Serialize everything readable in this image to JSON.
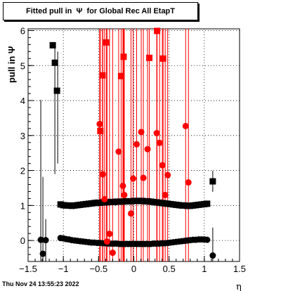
{
  "title": "Fitted pull in  Ψ  for Global Rec All EtapT",
  "timestamp": "Thu Nov 24 13:55:23 2022",
  "chart_data": {
    "type": "scatter",
    "title": "Fitted pull in  Ψ  for Global Rec All EtapT",
    "xlabel": "η",
    "ylabel": "pull in  Ψ",
    "xlim": [
      -1.5,
      1.5
    ],
    "ylim": [
      -0.6,
      6.05
    ],
    "x_ticks": [
      -1.5,
      -1,
      -0.5,
      0,
      0.5,
      1,
      1.5
    ],
    "x_tick_labels": [
      "−1.5",
      "−1",
      "−0.5",
      "0",
      "0.5",
      "1",
      "1.5"
    ],
    "y_ticks": [
      0,
      1,
      2,
      3,
      4,
      5,
      6
    ],
    "y_tick_labels": [
      "0",
      "1",
      "2",
      "3",
      "4",
      "5",
      "6"
    ],
    "grid": true,
    "series": [
      {
        "color": "#000000",
        "marker": "square",
        "points": [
          {
            "x": -1.15,
            "y": 5.58,
            "err": 0
          },
          {
            "x": -1.12,
            "y": 5.08,
            "err": 0
          },
          {
            "x": -1.09,
            "y": 4.28,
            "err": 0
          },
          {
            "x": -1.04,
            "y": 1.03,
            "err": 0
          },
          {
            "x": -1.0,
            "y": 1.01,
            "err": 0
          },
          {
            "x": -0.96,
            "y": 1.0,
            "err": 0
          },
          {
            "x": -0.92,
            "y": 1.0,
            "err": 0
          },
          {
            "x": -0.88,
            "y": 0.99,
            "err": 0
          },
          {
            "x": -0.84,
            "y": 1.0,
            "err": 0
          },
          {
            "x": -0.8,
            "y": 1.01,
            "err": 0
          },
          {
            "x": -0.76,
            "y": 1.02,
            "err": 0
          },
          {
            "x": -0.72,
            "y": 1.03,
            "err": 0
          },
          {
            "x": -0.68,
            "y": 1.04,
            "err": 0
          },
          {
            "x": -0.64,
            "y": 1.05,
            "err": 0
          },
          {
            "x": -0.6,
            "y": 1.06,
            "err": 0
          },
          {
            "x": -0.56,
            "y": 1.07,
            "err": 0
          },
          {
            "x": -0.52,
            "y": 1.08,
            "err": 0
          },
          {
            "x": -0.48,
            "y": 1.08,
            "err": 0
          },
          {
            "x": -0.44,
            "y": 1.09,
            "err": 0
          },
          {
            "x": -0.4,
            "y": 1.09,
            "err": 0
          },
          {
            "x": -0.36,
            "y": 1.1,
            "err": 0
          },
          {
            "x": -0.32,
            "y": 1.1,
            "err": 0
          },
          {
            "x": -0.28,
            "y": 1.1,
            "err": 0
          },
          {
            "x": -0.24,
            "y": 1.11,
            "err": 0
          },
          {
            "x": -0.2,
            "y": 1.11,
            "err": 0
          },
          {
            "x": -0.16,
            "y": 1.11,
            "err": 0
          },
          {
            "x": -0.12,
            "y": 1.12,
            "err": 0
          },
          {
            "x": -0.08,
            "y": 1.12,
            "err": 0
          },
          {
            "x": -0.04,
            "y": 1.12,
            "err": 0
          },
          {
            "x": 0.0,
            "y": 1.13,
            "err": 0
          },
          {
            "x": 0.04,
            "y": 1.13,
            "err": 0
          },
          {
            "x": 0.08,
            "y": 1.13,
            "err": 0
          },
          {
            "x": 0.12,
            "y": 1.13,
            "err": 0
          },
          {
            "x": 0.16,
            "y": 1.12,
            "err": 0
          },
          {
            "x": 0.2,
            "y": 1.12,
            "err": 0
          },
          {
            "x": 0.24,
            "y": 1.11,
            "err": 0
          },
          {
            "x": 0.28,
            "y": 1.1,
            "err": 0
          },
          {
            "x": 0.32,
            "y": 1.09,
            "err": 0
          },
          {
            "x": 0.36,
            "y": 1.08,
            "err": 0
          },
          {
            "x": 0.4,
            "y": 1.07,
            "err": 0
          },
          {
            "x": 0.44,
            "y": 1.06,
            "err": 0
          },
          {
            "x": 0.48,
            "y": 1.05,
            "err": 0
          },
          {
            "x": 0.52,
            "y": 1.04,
            "err": 0
          },
          {
            "x": 0.56,
            "y": 1.03,
            "err": 0
          },
          {
            "x": 0.6,
            "y": 1.02,
            "err": 0
          },
          {
            "x": 0.64,
            "y": 1.01,
            "err": 0
          },
          {
            "x": 0.68,
            "y": 1.0,
            "err": 0
          },
          {
            "x": 0.72,
            "y": 1.0,
            "err": 0
          },
          {
            "x": 0.76,
            "y": 0.99,
            "err": 0
          },
          {
            "x": 0.8,
            "y": 0.99,
            "err": 0
          },
          {
            "x": 0.84,
            "y": 1.0,
            "err": 0
          },
          {
            "x": 0.88,
            "y": 1.01,
            "err": 0
          },
          {
            "x": 0.92,
            "y": 1.02,
            "err": 0
          },
          {
            "x": 0.96,
            "y": 1.03,
            "err": 0
          },
          {
            "x": 1.0,
            "y": 1.04,
            "err": 0
          },
          {
            "x": 1.04,
            "y": 1.05,
            "err": 0
          },
          {
            "x": 1.12,
            "y": 1.69,
            "err": 0.3
          }
        ]
      },
      {
        "color": "#000000",
        "marker": "circle",
        "points": [
          {
            "x": -1.32,
            "y": 0.02,
            "err": 4.0
          },
          {
            "x": -1.29,
            "y": -0.38,
            "err": 2.2
          },
          {
            "x": -1.25,
            "y": 0.01,
            "err": 0.6
          },
          {
            "x": -1.04,
            "y": 0.07,
            "err": 0
          },
          {
            "x": -1.0,
            "y": 0.06,
            "err": 0
          },
          {
            "x": -0.96,
            "y": 0.04,
            "err": 0
          },
          {
            "x": -0.92,
            "y": 0.03,
            "err": 0
          },
          {
            "x": -0.88,
            "y": 0.01,
            "err": 0
          },
          {
            "x": -0.84,
            "y": 0.0,
            "err": 0
          },
          {
            "x": -0.8,
            "y": -0.01,
            "err": 0
          },
          {
            "x": -0.76,
            "y": -0.02,
            "err": 0
          },
          {
            "x": -0.72,
            "y": -0.03,
            "err": 0
          },
          {
            "x": -0.68,
            "y": -0.04,
            "err": 0
          },
          {
            "x": -0.64,
            "y": -0.05,
            "err": 0
          },
          {
            "x": -0.6,
            "y": -0.06,
            "err": 0
          },
          {
            "x": -0.56,
            "y": -0.06,
            "err": 0
          },
          {
            "x": -0.52,
            "y": -0.07,
            "err": 0
          },
          {
            "x": -0.48,
            "y": -0.07,
            "err": 0
          },
          {
            "x": -0.44,
            "y": -0.08,
            "err": 0
          },
          {
            "x": -0.4,
            "y": -0.08,
            "err": 0
          },
          {
            "x": -0.36,
            "y": -0.09,
            "err": 0
          },
          {
            "x": -0.32,
            "y": -0.09,
            "err": 0
          },
          {
            "x": -0.28,
            "y": -0.09,
            "err": 0
          },
          {
            "x": -0.24,
            "y": -0.09,
            "err": 0
          },
          {
            "x": -0.2,
            "y": -0.1,
            "err": 0
          },
          {
            "x": -0.16,
            "y": -0.1,
            "err": 0
          },
          {
            "x": -0.12,
            "y": -0.1,
            "err": 0
          },
          {
            "x": -0.08,
            "y": -0.1,
            "err": 0
          },
          {
            "x": -0.04,
            "y": -0.1,
            "err": 0
          },
          {
            "x": 0.0,
            "y": -0.1,
            "err": 0
          },
          {
            "x": 0.04,
            "y": -0.1,
            "err": 0
          },
          {
            "x": 0.08,
            "y": -0.1,
            "err": 0
          },
          {
            "x": 0.12,
            "y": -0.1,
            "err": 0
          },
          {
            "x": 0.16,
            "y": -0.1,
            "err": 0
          },
          {
            "x": 0.2,
            "y": -0.1,
            "err": 0
          },
          {
            "x": 0.24,
            "y": -0.1,
            "err": 0
          },
          {
            "x": 0.28,
            "y": -0.09,
            "err": 0
          },
          {
            "x": 0.32,
            "y": -0.09,
            "err": 0
          },
          {
            "x": 0.36,
            "y": -0.09,
            "err": 0
          },
          {
            "x": 0.4,
            "y": -0.08,
            "err": 0
          },
          {
            "x": 0.44,
            "y": -0.08,
            "err": 0
          },
          {
            "x": 0.48,
            "y": -0.07,
            "err": 0
          },
          {
            "x": 0.52,
            "y": -0.06,
            "err": 0
          },
          {
            "x": 0.56,
            "y": -0.05,
            "err": 0
          },
          {
            "x": 0.6,
            "y": -0.04,
            "err": 0
          },
          {
            "x": 0.64,
            "y": -0.03,
            "err": 0
          },
          {
            "x": 0.68,
            "y": -0.02,
            "err": 0
          },
          {
            "x": 0.72,
            "y": -0.01,
            "err": 0
          },
          {
            "x": 0.76,
            "y": 0.0,
            "err": 0
          },
          {
            "x": 0.8,
            "y": 0.01,
            "err": 0
          },
          {
            "x": 0.84,
            "y": 0.02,
            "err": 0
          },
          {
            "x": 0.88,
            "y": 0.02,
            "err": 0
          },
          {
            "x": 0.92,
            "y": 0.03,
            "err": 0
          },
          {
            "x": 0.96,
            "y": 0.03,
            "err": 0
          },
          {
            "x": 1.0,
            "y": 0.03,
            "err": 0
          },
          {
            "x": 1.04,
            "y": 0.02,
            "err": 0
          },
          {
            "x": 1.12,
            "y": -0.43,
            "err": 0.8
          }
        ],
        "extra_whiskers": [
          {
            "x": -1.08,
            "y_low": 2.2,
            "y_high": 5.4
          },
          {
            "x": -1.12,
            "y_low": 1.9,
            "y_high": 5.6
          }
        ]
      },
      {
        "color": "#ff0000",
        "marker": "square",
        "points": [
          {
            "x": -0.475,
            "y": 3.13,
            "err": 7
          },
          {
            "x": -0.445,
            "y": 4.72,
            "err": 7
          },
          {
            "x": -0.39,
            "y": 5.66,
            "err": 7
          },
          {
            "x": -0.18,
            "y": 4.7,
            "err": 7
          },
          {
            "x": -0.145,
            "y": 5.25,
            "err": 7
          },
          {
            "x": 0.22,
            "y": 5.22,
            "err": 7
          },
          {
            "x": 0.33,
            "y": 5.99,
            "err": 7
          },
          {
            "x": 0.415,
            "y": 5.2,
            "err": 7
          }
        ]
      },
      {
        "color": "#ff0000",
        "marker": "circle",
        "points": [
          {
            "x": -0.485,
            "y": 3.33,
            "err": 7
          },
          {
            "x": -0.44,
            "y": 1.89,
            "err": 7
          },
          {
            "x": -0.415,
            "y": 1.18,
            "err": 7
          },
          {
            "x": -0.38,
            "y": -0.03,
            "err": 7
          },
          {
            "x": -0.345,
            "y": 0.19,
            "err": 7
          },
          {
            "x": -0.3,
            "y": -0.35,
            "err": 7
          },
          {
            "x": -0.215,
            "y": 2.54,
            "err": 7
          },
          {
            "x": -0.155,
            "y": 1.56,
            "err": 7
          },
          {
            "x": -0.135,
            "y": 1.3,
            "err": 7
          },
          {
            "x": -0.04,
            "y": 0.77,
            "err": 7
          },
          {
            "x": -0.01,
            "y": 1.77,
            "err": 7
          },
          {
            "x": 0.04,
            "y": 2.75,
            "err": 7
          },
          {
            "x": 0.105,
            "y": 3.1,
            "err": 7
          },
          {
            "x": 0.135,
            "y": 1.79,
            "err": 7
          },
          {
            "x": 0.195,
            "y": 2.61,
            "err": 7
          },
          {
            "x": 0.325,
            "y": 3.07,
            "err": 7
          },
          {
            "x": 0.365,
            "y": 2.79,
            "err": 7
          },
          {
            "x": 0.405,
            "y": 2.15,
            "err": 7
          },
          {
            "x": 0.445,
            "y": 1.3,
            "err": 7
          },
          {
            "x": 0.48,
            "y": 1.87,
            "err": 7
          },
          {
            "x": 0.735,
            "y": 3.27,
            "err": 7
          },
          {
            "x": 0.775,
            "y": 1.66,
            "err": 7
          }
        ]
      }
    ]
  }
}
